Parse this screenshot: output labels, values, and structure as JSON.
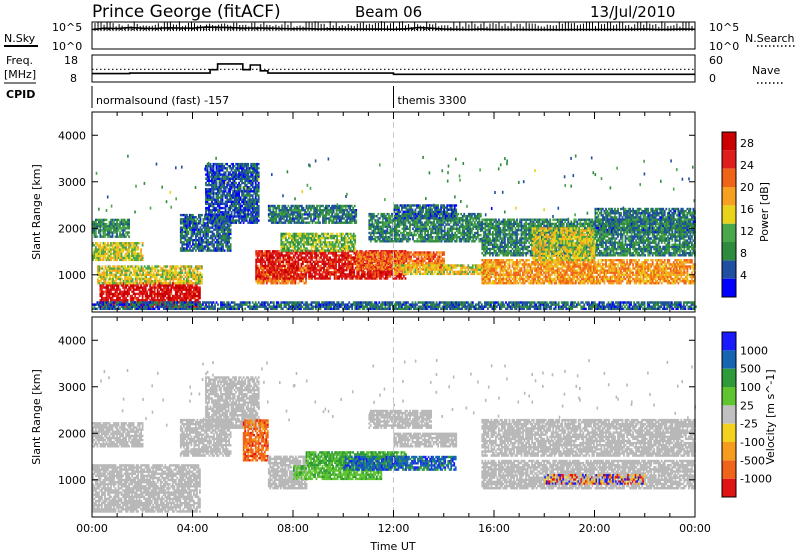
{
  "header": {
    "station": "Prince George (fitACF)",
    "beam": "Beam 06",
    "date": "13/Jul/2010"
  },
  "colors": {
    "power_scale": [
      "#0000ff",
      "#1e4fa0",
      "#2e8b3e",
      "#4aa64a",
      "#e8d21a",
      "#f5a020",
      "#f06418",
      "#e01e1e",
      "#cc0000"
    ],
    "velocity_scale": [
      "#1a1aff",
      "#1565b0",
      "#2f9a3a",
      "#5fc430",
      "#c0c0c0",
      "#f2d21e",
      "#f59b1e",
      "#f0641a",
      "#e01414"
    ],
    "ground_scatter": "#b8b8b8"
  },
  "chart_data": [
    {
      "type": "line",
      "name": "noise-panel",
      "left_label": "N.Sky",
      "right_label": "N.Search",
      "left_ticks": [
        "10^5",
        "10^0"
      ],
      "right_ticks": [
        "10^5",
        "10^0"
      ],
      "scale": "log",
      "ylim": [
        1,
        100000
      ],
      "series": [
        {
          "name": "N.Sky",
          "x": [
            0,
            0.5,
            1,
            1.5,
            2,
            2.5,
            3,
            3.5,
            4,
            4.5,
            5,
            5.5,
            6,
            6.5,
            7,
            7.5,
            8,
            8.5,
            9,
            9.5,
            10,
            10.5,
            11,
            11.5,
            12,
            12.5,
            13,
            13.5,
            14,
            14.5,
            15,
            15.5,
            16,
            16.5,
            17,
            17.5,
            18,
            18.5,
            19,
            19.5,
            20,
            20.5,
            21,
            21.5,
            22,
            22.5,
            23,
            23.5,
            24
          ],
          "y": [
            5000,
            9000,
            8000,
            12000,
            9000,
            8000,
            11000,
            10000,
            9000,
            15000,
            14000,
            12000,
            9000,
            10000,
            9000,
            8000,
            7000,
            7500,
            6000,
            7000,
            6500,
            6000,
            6000,
            6200,
            5500,
            7000,
            12000,
            9000,
            6000,
            5500,
            5000,
            6000,
            5000,
            5200,
            5000,
            4800,
            5000,
            4500,
            4800,
            5000,
            5000,
            5200,
            5000,
            5500,
            6000,
            5000,
            5200,
            6000,
            5500
          ]
        },
        {
          "name": "N.Search",
          "x": [
            0,
            6,
            12,
            18,
            24
          ],
          "y": [
            5000,
            6000,
            5000,
            4500,
            5000
          ]
        }
      ]
    },
    {
      "type": "line",
      "name": "frequency-panel",
      "left_label": "Freq.",
      "left_unit": "[MHz]",
      "right_label": "Nave",
      "left_ticks": [
        18,
        8
      ],
      "right_ticks": [
        60,
        0
      ],
      "series": [
        {
          "name": "Freq.",
          "x": [
            0,
            1.5,
            1.5,
            4.7,
            4.7,
            5.0,
            5.0,
            6.0,
            6.0,
            6.3,
            6.3,
            6.7,
            6.7,
            7.0,
            7.0,
            11.0,
            11.0,
            12.0,
            12.0,
            24.0
          ],
          "y": [
            10.8,
            10.8,
            11.0,
            11.0,
            12.5,
            12.5,
            15.0,
            15.0,
            12.5,
            12.5,
            14.5,
            14.5,
            12.0,
            12.0,
            11.0,
            11.0,
            11.0,
            11.0,
            10.5,
            10.5
          ]
        },
        {
          "name": "Nave",
          "x": [
            0,
            24
          ],
          "y": [
            28,
            28
          ]
        }
      ]
    },
    {
      "type": "table",
      "name": "cpid-panel",
      "label": "CPID",
      "segments": [
        {
          "start": 0,
          "end": 12,
          "text": "normalsound (fast) -157"
        },
        {
          "start": 12,
          "end": 24,
          "text": "themis 3300"
        }
      ]
    },
    {
      "type": "heatmap",
      "name": "power-panel",
      "ylabel": "Slant Range [km]",
      "xlim": [
        0,
        24
      ],
      "ylim": [
        200,
        4500
      ],
      "yticks": [
        1000,
        2000,
        3000,
        4000
      ],
      "colorbar_label": "Power [dB]",
      "colorbar_ticks": [
        4,
        8,
        12,
        16,
        20,
        24,
        28
      ],
      "colorbar_range": [
        0,
        30
      ],
      "marker_time": 12,
      "bands": [
        {
          "t0": 0.3,
          "t1": 4.3,
          "r0": 300,
          "r1": 800,
          "level": 27
        },
        {
          "t0": 0.2,
          "t1": 4.4,
          "r0": 800,
          "r1": 1200,
          "level": 15
        },
        {
          "t0": 0.0,
          "t1": 2.0,
          "r0": 1300,
          "r1": 1700,
          "level": 14
        },
        {
          "t0": 0.0,
          "t1": 1.5,
          "r0": 1800,
          "r1": 2200,
          "level": 9
        },
        {
          "t0": 3.5,
          "t1": 5.5,
          "r0": 1500,
          "r1": 2300,
          "level": 6
        },
        {
          "t0": 4.5,
          "t1": 6.6,
          "r0": 2100,
          "r1": 3400,
          "level": 5
        },
        {
          "t0": 6.5,
          "t1": 8.5,
          "r0": 800,
          "r1": 1200,
          "level": 20
        },
        {
          "t0": 6.5,
          "t1": 12.5,
          "r0": 900,
          "r1": 1500,
          "level": 26
        },
        {
          "t0": 7.5,
          "t1": 10.5,
          "r0": 1500,
          "r1": 1900,
          "level": 12
        },
        {
          "t0": 7.0,
          "t1": 10.5,
          "r0": 2100,
          "r1": 2500,
          "level": 7
        },
        {
          "t0": 10.5,
          "t1": 14.0,
          "r0": 1100,
          "r1": 1500,
          "level": 21
        },
        {
          "t0": 11.0,
          "t1": 15.5,
          "r0": 1700,
          "r1": 2300,
          "level": 8
        },
        {
          "t0": 12.0,
          "t1": 14.5,
          "r0": 2200,
          "r1": 2500,
          "level": 6
        },
        {
          "t0": 12.0,
          "t1": 16.0,
          "r0": 1000,
          "r1": 1200,
          "level": 16
        },
        {
          "t0": 15.5,
          "t1": 24.0,
          "r0": 800,
          "r1": 1300,
          "level": 19
        },
        {
          "t0": 15.5,
          "t1": 24.0,
          "r0": 1400,
          "r1": 2200,
          "level": 8
        },
        {
          "t0": 17.5,
          "t1": 20.0,
          "r0": 1300,
          "r1": 2000,
          "level": 15
        },
        {
          "t0": 20.0,
          "t1": 24.0,
          "r0": 1900,
          "r1": 2400,
          "level": 7
        },
        {
          "t0": 0.0,
          "t1": 24.0,
          "r0": 250,
          "r1": 400,
          "level": 6
        }
      ]
    },
    {
      "type": "heatmap",
      "name": "velocity-panel",
      "ylabel": "Slant Range [km]",
      "xlabel": "Time UT",
      "xlim": [
        0,
        24
      ],
      "ylim": [
        200,
        4500
      ],
      "xticks": [
        "00:00",
        "04:00",
        "08:00",
        "12:00",
        "16:00",
        "20:00",
        "00:00"
      ],
      "yticks": [
        1000,
        2000,
        3000,
        4000
      ],
      "colorbar_label": "Velocity [m s^-1]",
      "colorbar_ticks": [
        1000,
        500,
        100,
        25,
        -25,
        -100,
        -500,
        -1000
      ],
      "marker_time": 12,
      "bands": [
        {
          "t0": 0.0,
          "t1": 4.3,
          "r0": 300,
          "r1": 1300,
          "class": "ground"
        },
        {
          "t0": 0.0,
          "t1": 2.0,
          "r0": 1700,
          "r1": 2200,
          "class": "ground"
        },
        {
          "t0": 3.5,
          "t1": 5.5,
          "r0": 1500,
          "r1": 2300,
          "class": "ground"
        },
        {
          "t0": 4.5,
          "t1": 6.6,
          "r0": 2100,
          "r1": 3200,
          "class": "ground"
        },
        {
          "t0": 6.0,
          "t1": 7.0,
          "r0": 1400,
          "r1": 2300,
          "class": "negative"
        },
        {
          "t0": 7.0,
          "t1": 8.5,
          "r0": 800,
          "r1": 1500,
          "class": "ground"
        },
        {
          "t0": 8.0,
          "t1": 11.5,
          "r0": 1000,
          "r1": 1300,
          "class": "low-positive"
        },
        {
          "t0": 8.5,
          "t1": 12.5,
          "r0": 1300,
          "r1": 1600,
          "class": "mid-positive"
        },
        {
          "t0": 10.0,
          "t1": 14.5,
          "r0": 1200,
          "r1": 1500,
          "class": "high-positive"
        },
        {
          "t0": 11.0,
          "t1": 13.5,
          "r0": 2100,
          "r1": 2500,
          "class": "ground"
        },
        {
          "t0": 12.0,
          "t1": 14.5,
          "r0": 1700,
          "r1": 2000,
          "class": "ground"
        },
        {
          "t0": 15.5,
          "t1": 24.0,
          "r0": 800,
          "r1": 1400,
          "class": "ground"
        },
        {
          "t0": 15.5,
          "t1": 24.0,
          "r0": 1500,
          "r1": 2300,
          "class": "ground"
        },
        {
          "t0": 18.0,
          "t1": 22.0,
          "r0": 900,
          "r1": 1100,
          "class": "mixed"
        }
      ]
    }
  ]
}
